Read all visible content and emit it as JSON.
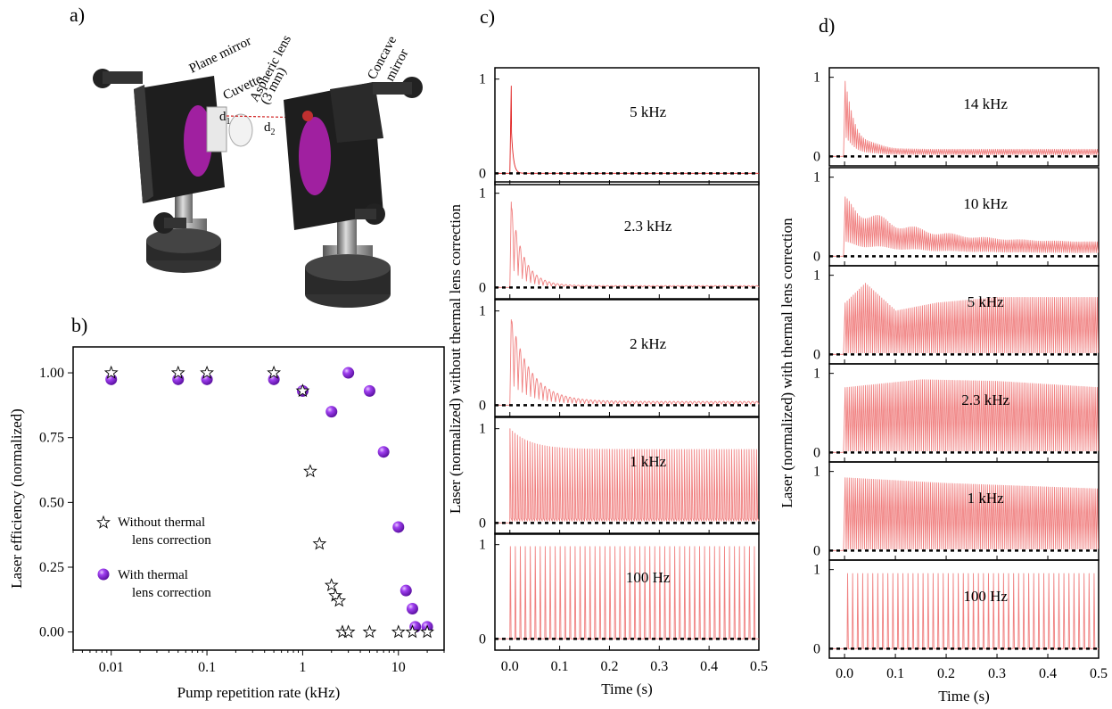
{
  "panel_labels": {
    "a": "a)",
    "b": "b)",
    "c": "c)",
    "d": "d)"
  },
  "diagram": {
    "labels": {
      "plane_mirror": "Plane mirror",
      "cuvette": "Cuvette",
      "aspheric_lens": "Aspheric lens",
      "aspheric_lens_size": "(3 mm)",
      "concave_mirror_1": "Concave",
      "concave_mirror_2": "mirror",
      "d1": "d",
      "d1_sub": "1",
      "d2": "d",
      "d2_sub": "2"
    }
  },
  "chart_data": [
    {
      "id": "b",
      "type": "scatter",
      "xlabel": "Pump repetition rate (kHz)",
      "ylabel": "Laser efficiency (normalized)",
      "xscale": "log",
      "xlim": [
        0.004,
        30
      ],
      "ylim": [
        -0.07,
        1.1
      ],
      "xticks": [
        0.01,
        0.1,
        1,
        10
      ],
      "xtick_labels": [
        "0.01",
        "0.1",
        "1",
        "10"
      ],
      "yticks": [
        0.0,
        0.25,
        0.5,
        0.75,
        1.0
      ],
      "ytick_labels": [
        "0.00",
        "0.25",
        "0.50",
        "0.75",
        "1.00"
      ],
      "legend_position": "bottom-left",
      "series": [
        {
          "name": "Without thermal lens correction",
          "legend_lines": [
            "Without thermal",
            "lens correction"
          ],
          "marker": "open-star",
          "points": [
            [
              0.01,
              1.0
            ],
            [
              0.05,
              1.0
            ],
            [
              0.1,
              1.0
            ],
            [
              0.5,
              1.0
            ],
            [
              1.0,
              0.93
            ],
            [
              1.2,
              0.62
            ],
            [
              1.5,
              0.34
            ],
            [
              2.0,
              0.18
            ],
            [
              2.2,
              0.14
            ],
            [
              2.4,
              0.12
            ],
            [
              2.6,
              0.0
            ],
            [
              3.0,
              0.0
            ],
            [
              5.0,
              0.0
            ],
            [
              10.0,
              0.0
            ],
            [
              14.0,
              0.0
            ],
            [
              20.0,
              0.0
            ]
          ]
        },
        {
          "name": "With thermal lens correction",
          "legend_lines": [
            "With thermal",
            "lens correction"
          ],
          "marker": "purple-sphere",
          "color": "#8a2be2",
          "points": [
            [
              0.01,
              0.975
            ],
            [
              0.05,
              0.975
            ],
            [
              0.1,
              0.975
            ],
            [
              0.5,
              0.975
            ],
            [
              1.0,
              0.93
            ],
            [
              2.0,
              0.85
            ],
            [
              3.0,
              1.0
            ],
            [
              5.0,
              0.93
            ],
            [
              7.0,
              0.695
            ],
            [
              10.0,
              0.405
            ],
            [
              12.0,
              0.16
            ],
            [
              14.0,
              0.09
            ],
            [
              15.0,
              0.02
            ],
            [
              20.0,
              0.02
            ]
          ]
        }
      ]
    },
    {
      "id": "c",
      "type": "line",
      "ylabel": "Laser (normalized) without thermal lens correction",
      "xlabel": "Time (s)",
      "xlim": [
        -0.03,
        0.5
      ],
      "xticks": [
        0.0,
        0.1,
        0.2,
        0.3,
        0.4,
        0.5
      ],
      "xtick_labels": [
        "0.0",
        "0.1",
        "0.2",
        "0.3",
        "0.4",
        "0.5"
      ],
      "ylim": [
        -0.12,
        1.12
      ],
      "yticks": [
        0,
        1
      ],
      "ytick_labels": [
        "0",
        "1"
      ],
      "baseline": 0,
      "color": "#f08080",
      "subplots": [
        {
          "label": "5 kHz",
          "shape": "spike",
          "peak": 1.0,
          "decay": 0.004,
          "floor": 0.0,
          "color": "#e02020"
        },
        {
          "label": "2.3 kHz",
          "shape": "decay",
          "peak": 0.98,
          "decay": 0.025,
          "floor": 0.02
        },
        {
          "label": "2 kHz",
          "shape": "decay-oscillating",
          "peak": 0.98,
          "decay": 0.04,
          "floor": 0.04
        },
        {
          "label": "1 kHz",
          "shape": "pulse-train",
          "pulse_count": 100,
          "start": 0.0,
          "first_peak": 1.0,
          "steady": 0.78
        },
        {
          "label": "100 Hz",
          "shape": "spike-train",
          "pulse_count": 50,
          "start": 0.0,
          "peak": 0.98
        }
      ]
    },
    {
      "id": "d",
      "type": "line",
      "ylabel": "Laser (normalized) with thermal lens correction",
      "xlabel": "Time (s)",
      "xlim": [
        -0.03,
        0.5
      ],
      "xticks": [
        0.0,
        0.1,
        0.2,
        0.3,
        0.4,
        0.5
      ],
      "xtick_labels": [
        "0.0",
        "0.1",
        "0.2",
        "0.3",
        "0.4",
        "0.5"
      ],
      "ylim": [
        -0.12,
        1.12
      ],
      "yticks": [
        0,
        1
      ],
      "ytick_labels": [
        "0",
        "1"
      ],
      "baseline": 0,
      "color": "#f08080",
      "subplots": [
        {
          "label": "14 kHz",
          "shape": "dense-decay",
          "peak": 0.95,
          "decay": 0.025,
          "floor": 0.09
        },
        {
          "label": "10 kHz",
          "shape": "dense-decay",
          "peak": 0.75,
          "decay": 0.13,
          "floor": 0.17
        },
        {
          "label": "5 kHz",
          "shape": "dense-envelope",
          "envelope": [
            [
              0.0,
              0.65
            ],
            [
              0.04,
              0.9
            ],
            [
              0.1,
              0.55
            ],
            [
              0.18,
              0.65
            ],
            [
              0.3,
              0.72
            ],
            [
              0.5,
              0.72
            ]
          ]
        },
        {
          "label": "2.3 kHz",
          "shape": "dense-envelope",
          "envelope": [
            [
              0.0,
              0.82
            ],
            [
              0.15,
              0.92
            ],
            [
              0.3,
              0.9
            ],
            [
              0.5,
              0.82
            ]
          ]
        },
        {
          "label": "1 kHz",
          "shape": "dense-envelope",
          "envelope": [
            [
              0.0,
              0.92
            ],
            [
              0.2,
              0.85
            ],
            [
              0.5,
              0.78
            ]
          ]
        },
        {
          "label": "100 Hz",
          "shape": "spike-train",
          "pulse_count": 50,
          "start": 0.005,
          "peak": 0.95
        }
      ]
    }
  ]
}
